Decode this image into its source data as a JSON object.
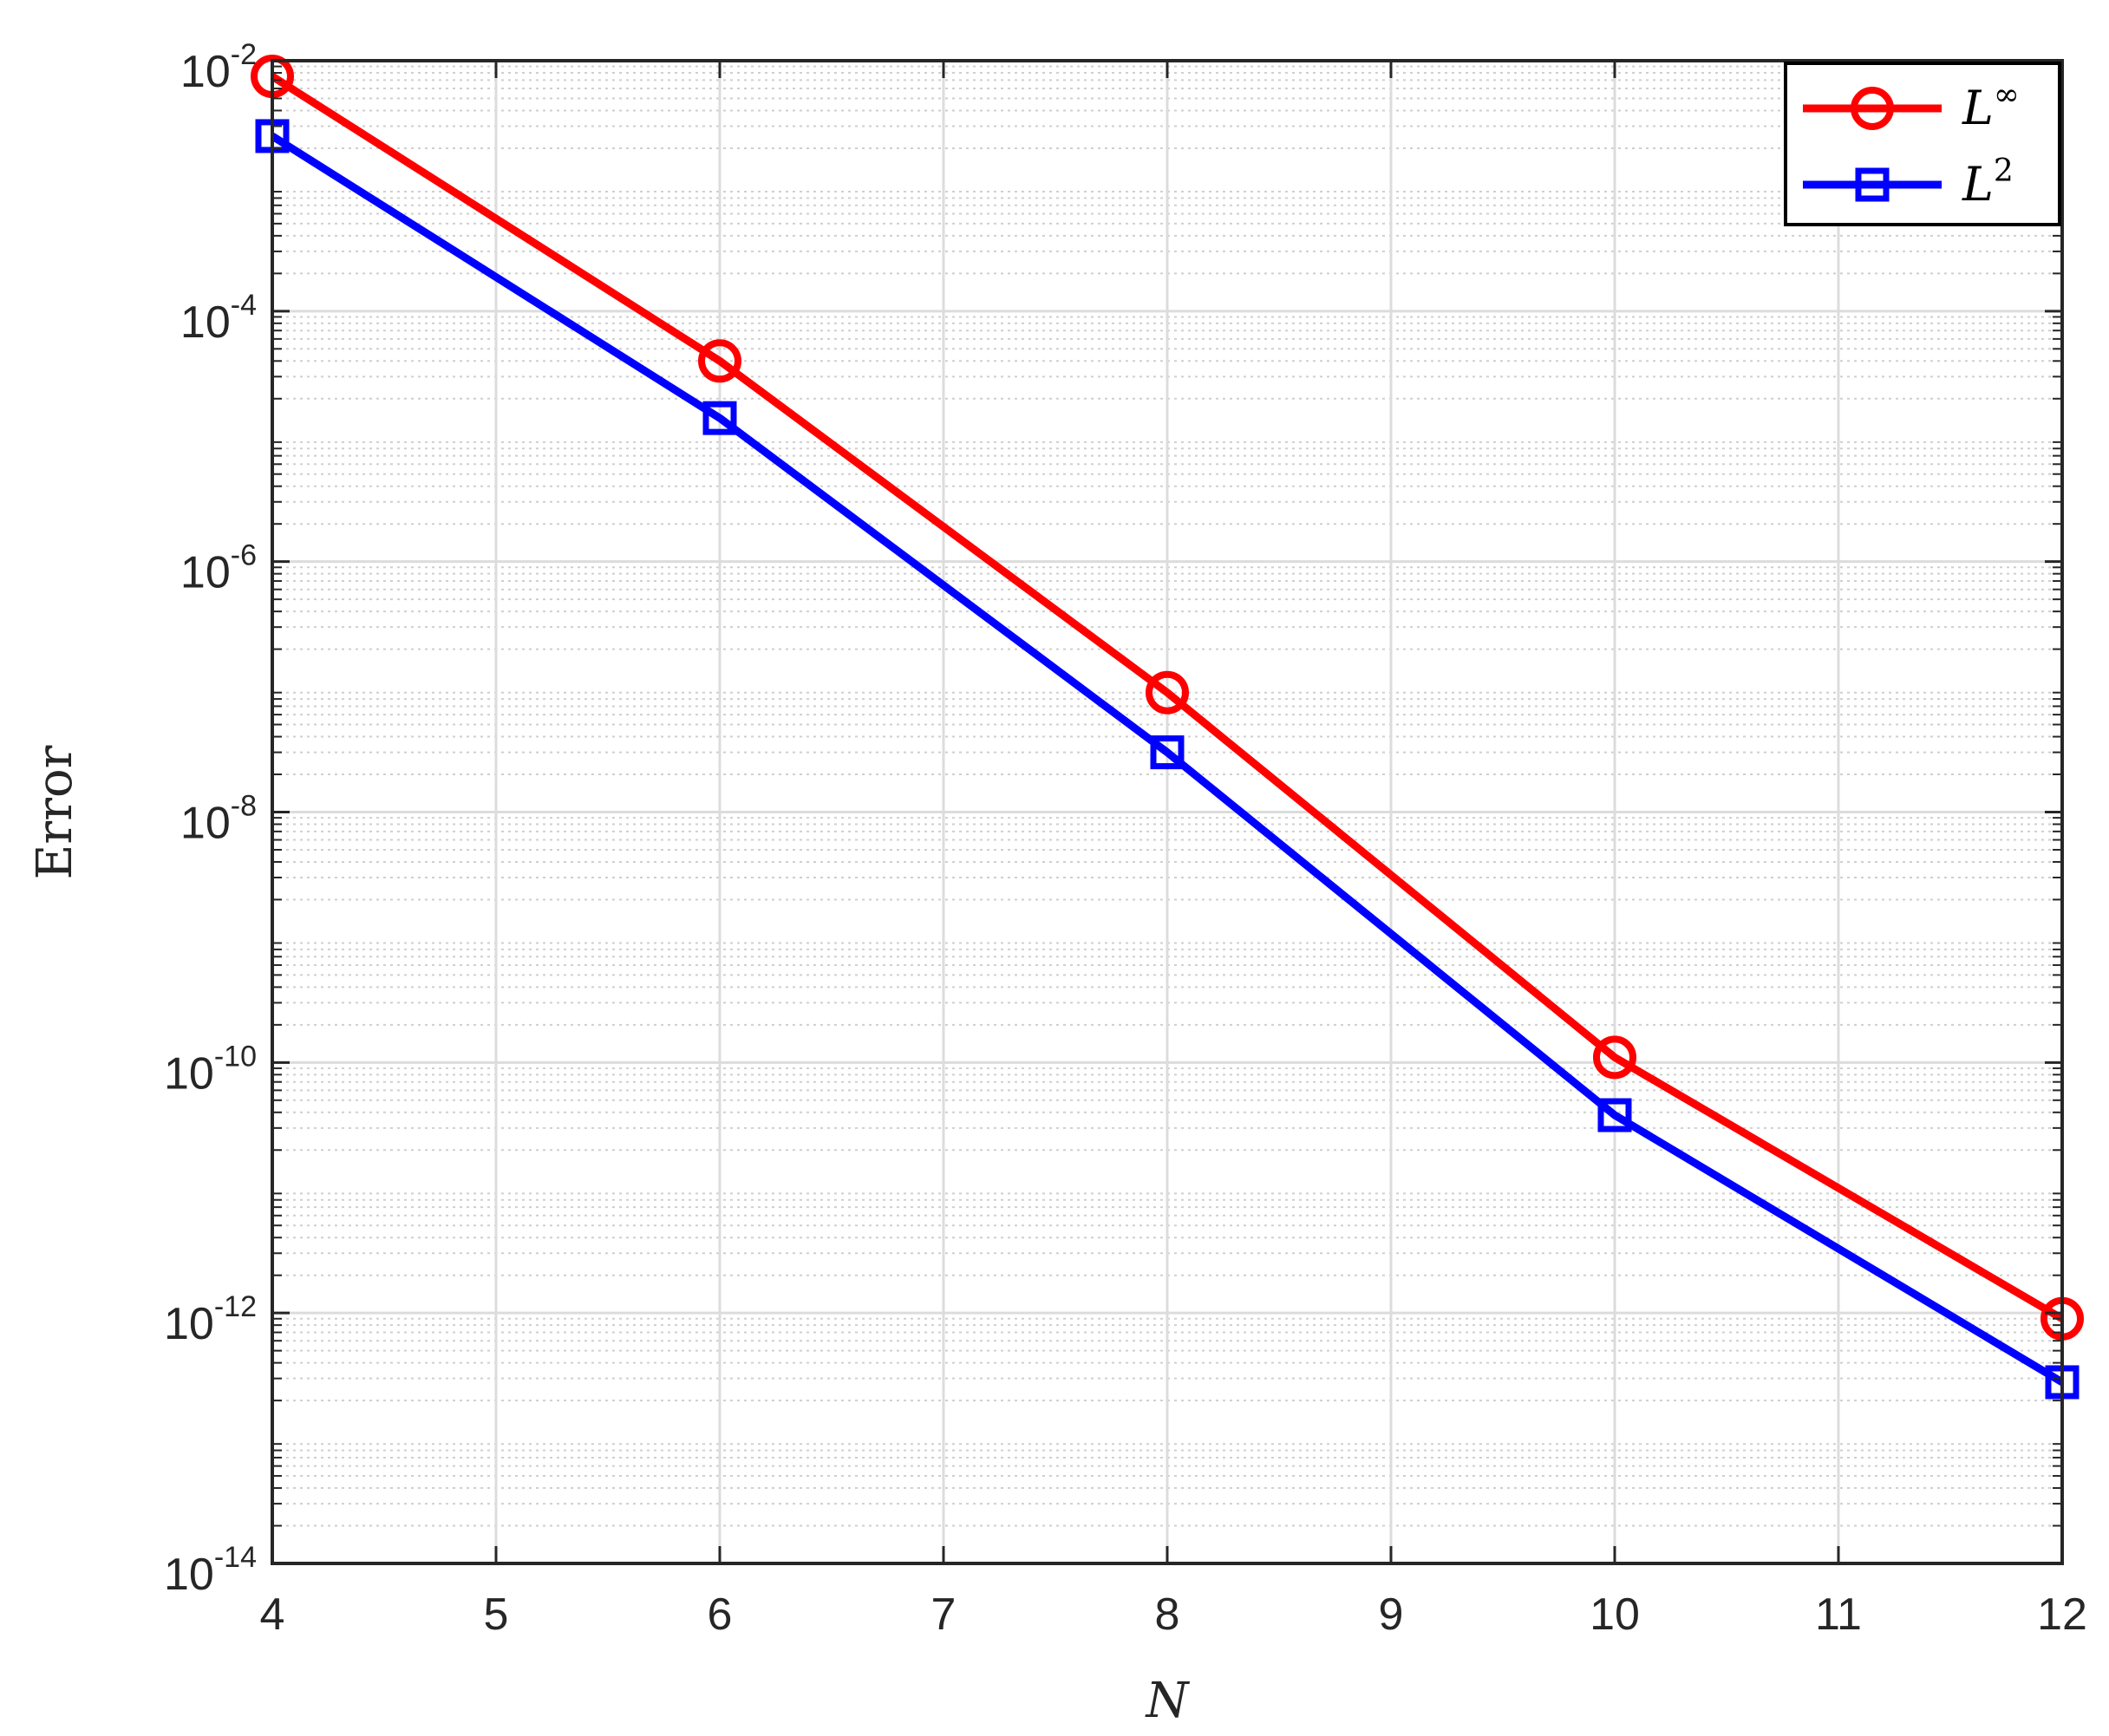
{
  "chart_data": {
    "type": "line",
    "title": "",
    "xlabel": "N",
    "ylabel": "Error",
    "x": [
      4,
      6,
      8,
      10,
      12
    ],
    "xlim": [
      4,
      12
    ],
    "xticks": [
      4,
      5,
      6,
      7,
      8,
      9,
      10,
      11,
      12
    ],
    "ylim": [
      1e-14,
      0.01
    ],
    "yscale": "log",
    "yticks": [
      1e-14,
      1e-12,
      1e-10,
      1e-08,
      1e-06,
      0.0001,
      0.01
    ],
    "ytick_labels": [
      {
        "base": "10",
        "exp": "-14"
      },
      {
        "base": "10",
        "exp": "-12"
      },
      {
        "base": "10",
        "exp": "-10"
      },
      {
        "base": "10",
        "exp": "-8"
      },
      {
        "base": "10",
        "exp": "-6"
      },
      {
        "base": "10",
        "exp": "-4"
      },
      {
        "base": "10",
        "exp": "-2"
      }
    ],
    "grid": true,
    "minor_grid": true,
    "legend_position": "top-right",
    "series": [
      {
        "name": "L∞",
        "legend_base": "L",
        "legend_sup": "∞",
        "color": "#ff0000",
        "marker": "circle",
        "values": [
          0.0075,
          4e-05,
          9e-08,
          1.1e-10,
          9e-13
        ]
      },
      {
        "name": "L2",
        "legend_base": "L",
        "legend_sup": "2",
        "color": "#0000ff",
        "marker": "square",
        "values": [
          0.0025,
          1.4e-05,
          3e-08,
          3.8e-11,
          2.8e-13
        ]
      }
    ]
  }
}
